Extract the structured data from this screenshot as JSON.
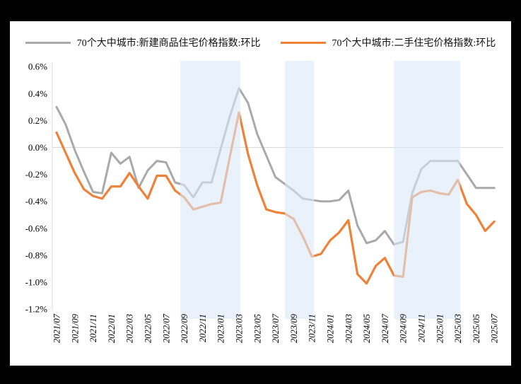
{
  "window": {
    "background": "#000000",
    "card_background": "#ffffff"
  },
  "legend": [
    {
      "label": "70个大中城市:新建商品住宅价格指数:环比",
      "color": "#a9a9a9"
    },
    {
      "label": "70个大中城市:二手住宅价格指数:环比",
      "color": "#ef8138"
    }
  ],
  "chart_data": {
    "type": "line",
    "title": "",
    "xlabel": "",
    "ylabel": "",
    "unit": "%",
    "ylim": [
      -1.2,
      0.6
    ],
    "ytick_step": 0.2,
    "legend_position": "top-center",
    "grid": "zero-line-only",
    "x": [
      "2021/07",
      "2021/08",
      "2021/09",
      "2021/10",
      "2021/11",
      "2021/12",
      "2022/01",
      "2022/02",
      "2022/03",
      "2022/04",
      "2022/05",
      "2022/06",
      "2022/07",
      "2022/08",
      "2022/09",
      "2022/10",
      "2022/11",
      "2022/12",
      "2023/01",
      "2023/02",
      "2023/03",
      "2023/04",
      "2023/05",
      "2023/06",
      "2023/07",
      "2023/08",
      "2023/09",
      "2023/10",
      "2023/11",
      "2023/12",
      "2024/01",
      "2024/02",
      "2024/03",
      "2024/04",
      "2024/05",
      "2024/06",
      "2024/07",
      "2024/08",
      "2024/09",
      "2024/10",
      "2024/11",
      "2024/12",
      "2025/01",
      "2025/02",
      "2025/03",
      "2025/04",
      "2025/05",
      "2025/06",
      "2025/07"
    ],
    "series": [
      {
        "name": "70个大中城市:新建商品住宅价格指数:环比",
        "color": "#a9a9a9",
        "values": [
          0.3,
          0.17,
          -0.02,
          -0.18,
          -0.33,
          -0.34,
          -0.04,
          -0.12,
          -0.07,
          -0.3,
          -0.17,
          -0.1,
          -0.11,
          -0.26,
          -0.28,
          -0.37,
          -0.26,
          -0.26,
          -0.01,
          0.23,
          0.44,
          0.33,
          0.1,
          -0.06,
          -0.22,
          -0.27,
          -0.32,
          -0.38,
          -0.39,
          -0.4,
          -0.4,
          -0.39,
          -0.32,
          -0.58,
          -0.71,
          -0.69,
          -0.62,
          -0.72,
          -0.7,
          -0.34,
          -0.16,
          -0.1,
          -0.1,
          -0.1,
          -0.1,
          -0.2,
          -0.3,
          -0.3,
          -0.3
        ]
      },
      {
        "name": "70个大中城市:二手住宅价格指数:环比",
        "color": "#ef8138",
        "values": [
          0.11,
          -0.04,
          -0.19,
          -0.31,
          -0.36,
          -0.38,
          -0.29,
          -0.29,
          -0.19,
          -0.29,
          -0.38,
          -0.21,
          -0.21,
          -0.32,
          -0.37,
          -0.46,
          -0.44,
          -0.42,
          -0.41,
          -0.07,
          0.26,
          -0.05,
          -0.28,
          -0.46,
          -0.48,
          -0.49,
          -0.53,
          -0.66,
          -0.81,
          -0.79,
          -0.69,
          -0.63,
          -0.54,
          -0.94,
          -1.01,
          -0.88,
          -0.82,
          -0.95,
          -0.96,
          -0.37,
          -0.33,
          -0.32,
          -0.34,
          -0.35,
          -0.24,
          -0.42,
          -0.5,
          -0.62,
          -0.55
        ]
      }
    ],
    "y_ticks": [
      {
        "value": 0.6,
        "label": "0.6%"
      },
      {
        "value": 0.4,
        "label": "0.4%"
      },
      {
        "value": 0.2,
        "label": "0.2%"
      },
      {
        "value": 0.0,
        "label": "0.0%"
      },
      {
        "value": -0.2,
        "label": "-0.2%"
      },
      {
        "value": -0.4,
        "label": "-0.4%"
      },
      {
        "value": -0.6,
        "label": "-0.6%"
      },
      {
        "value": -0.8,
        "label": "-0.8%"
      },
      {
        "value": -1.0,
        "label": "-1.0%"
      },
      {
        "value": -1.2,
        "label": "-1.2%"
      }
    ],
    "x_ticks": [
      {
        "index": 0,
        "label": "2021/07"
      },
      {
        "index": 2,
        "label": "2021/09"
      },
      {
        "index": 4,
        "label": "2021/11"
      },
      {
        "index": 6,
        "label": "2022/01"
      },
      {
        "index": 8,
        "label": "2022/03"
      },
      {
        "index": 10,
        "label": "2022/05"
      },
      {
        "index": 12,
        "label": "2022/07"
      },
      {
        "index": 14,
        "label": "2022/09"
      },
      {
        "index": 16,
        "label": "2022/11"
      },
      {
        "index": 18,
        "label": "2023/01"
      },
      {
        "index": 20,
        "label": "2023/03"
      },
      {
        "index": 22,
        "label": "2023/05"
      },
      {
        "index": 24,
        "label": "2023/07"
      },
      {
        "index": 26,
        "label": "2023/09"
      },
      {
        "index": 28,
        "label": "2023/11"
      },
      {
        "index": 30,
        "label": "2024/01"
      },
      {
        "index": 32,
        "label": "2024/03"
      },
      {
        "index": 34,
        "label": "2024/05"
      },
      {
        "index": 36,
        "label": "2024/07"
      },
      {
        "index": 38,
        "label": "2024/09"
      },
      {
        "index": 40,
        "label": "2024/11"
      },
      {
        "index": 42,
        "label": "2025/01"
      },
      {
        "index": 44,
        "label": "2025/03"
      },
      {
        "index": 46,
        "label": "2025/05"
      },
      {
        "index": 48,
        "label": "2025/07"
      }
    ],
    "bands": [
      {
        "from": "2022/09",
        "to": "2023/03",
        "start_index": 13.55,
        "end_index": 20.15,
        "color": "rgba(219,233,248,0.6)"
      },
      {
        "from": "2023/09",
        "to": "2023/11",
        "start_index": 25.05,
        "end_index": 28.25,
        "color": "rgba(219,233,248,0.6)"
      },
      {
        "from": "2024/09",
        "to": "2025/03",
        "start_index": 37.0,
        "end_index": 44.25,
        "color": "rgba(219,233,248,0.6)"
      }
    ],
    "axis_color": "#d9d9d9"
  }
}
